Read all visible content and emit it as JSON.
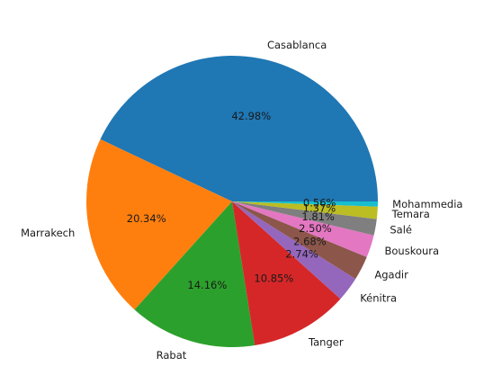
{
  "chart_data": {
    "type": "pie",
    "title": "",
    "labels": [
      "Casablanca",
      "Marrakech",
      "Rabat",
      "Tanger",
      "Kénitra",
      "Agadir",
      "Bouskoura",
      "Salé",
      "Temara",
      "Mohammedia"
    ],
    "values": [
      42.98,
      20.34,
      14.16,
      10.85,
      2.74,
      2.68,
      2.5,
      1.81,
      1.37,
      0.56
    ],
    "pct_labels": [
      "42.98%",
      "20.34%",
      "14.16%",
      "10.85%",
      "2.74%",
      "2.68%",
      "2.50%",
      "1.81%",
      "1.37%",
      "0.56%"
    ],
    "colors": [
      "#1f77b4",
      "#ff7f0e",
      "#2ca02c",
      "#d62728",
      "#9467bd",
      "#8c564b",
      "#e377c2",
      "#7f7f7f",
      "#bcbd22",
      "#17becf"
    ],
    "start_angle_deg": 0,
    "direction": "counterclockwise",
    "legend": "none"
  }
}
